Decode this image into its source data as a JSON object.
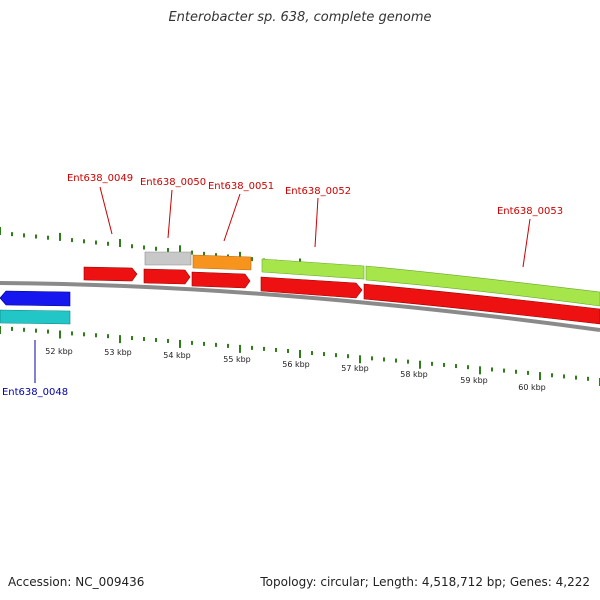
{
  "title": "Enterobacter sp. 638, complete genome",
  "footer": {
    "accession": "Accession: NC_009436",
    "stats": "Topology: circular; Length: 4,518,712 bp; Genes: 4,222"
  },
  "colors": {
    "tick": "#2e7d1a",
    "backbone": "#888888",
    "label_plus": "#cc0000",
    "label_minus": "#0000aa"
  },
  "scale_labels": [
    "52 kbp",
    "53 kbp",
    "54 kbp",
    "55 kbp",
    "56 kbp",
    "57 kbp",
    "58 kbp",
    "59 kbp",
    "60 kbp"
  ],
  "genes": [
    {
      "name": "Ent638_0048",
      "strand": "minus"
    },
    {
      "name": "Ent638_0049",
      "strand": "plus"
    },
    {
      "name": "Ent638_0050",
      "strand": "plus"
    },
    {
      "name": "Ent638_0051",
      "strand": "plus"
    },
    {
      "name": "Ent638_0052",
      "strand": "plus"
    },
    {
      "name": "Ent638_0053",
      "strand": "plus"
    }
  ]
}
